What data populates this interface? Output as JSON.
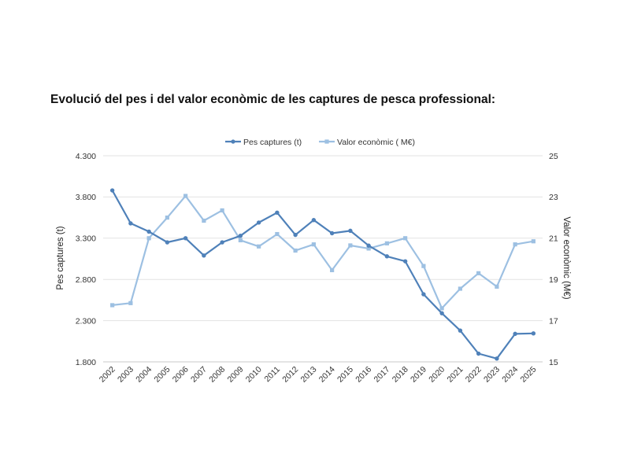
{
  "page": {
    "title": "Evolució del pes i del valor econòmic de les captures de pesca professional:"
  },
  "chart_data": {
    "type": "line",
    "title": "",
    "x": [
      "2002",
      "2003",
      "2004",
      "2005",
      "2006",
      "2007",
      "2008",
      "2009",
      "2010",
      "2011",
      "2012",
      "2013",
      "2014",
      "2015",
      "2016",
      "2017",
      "2018",
      "2019",
      "2020",
      "2021",
      "2022",
      "2023",
      "2024",
      "2025"
    ],
    "xlabel": "",
    "ylabel_left": "Pes captures (t)",
    "ylabel_right": "Valor econòmic (M€)",
    "ylim_left": [
      1800,
      4300
    ],
    "ylim_right": [
      15,
      25
    ],
    "yticks_left": [
      "1.800",
      "2.300",
      "2.800",
      "3.300",
      "3.800",
      "4.300"
    ],
    "yticks_left_values": [
      1800,
      2300,
      2800,
      3300,
      3800,
      4300
    ],
    "yticks_right": [
      "15",
      "17",
      "19",
      "21",
      "23",
      "25"
    ],
    "yticks_right_values": [
      15,
      17,
      19,
      21,
      23,
      25
    ],
    "grid": "horizontal",
    "legend_position": "top",
    "series": [
      {
        "name": "Pes captures (t)",
        "axis": "left",
        "marker": "circle",
        "color": "#4f81b9",
        "values": [
          3880,
          3480,
          3380,
          3250,
          3300,
          3090,
          3250,
          3330,
          3490,
          3610,
          3340,
          3520,
          3360,
          3390,
          3210,
          3080,
          3020,
          2620,
          2390,
          2180,
          1900,
          1840,
          2140,
          2145
        ]
      },
      {
        "name": "Valor econòmic ( M€)",
        "axis": "right",
        "marker": "square",
        "color": "#9dc0e2",
        "values": [
          17.75,
          17.85,
          21.0,
          22.0,
          23.05,
          21.85,
          22.35,
          20.9,
          20.6,
          21.2,
          20.4,
          20.7,
          19.45,
          20.65,
          20.5,
          20.75,
          21.0,
          19.65,
          17.6,
          18.55,
          19.3,
          18.65,
          20.7,
          20.85
        ]
      }
    ]
  }
}
